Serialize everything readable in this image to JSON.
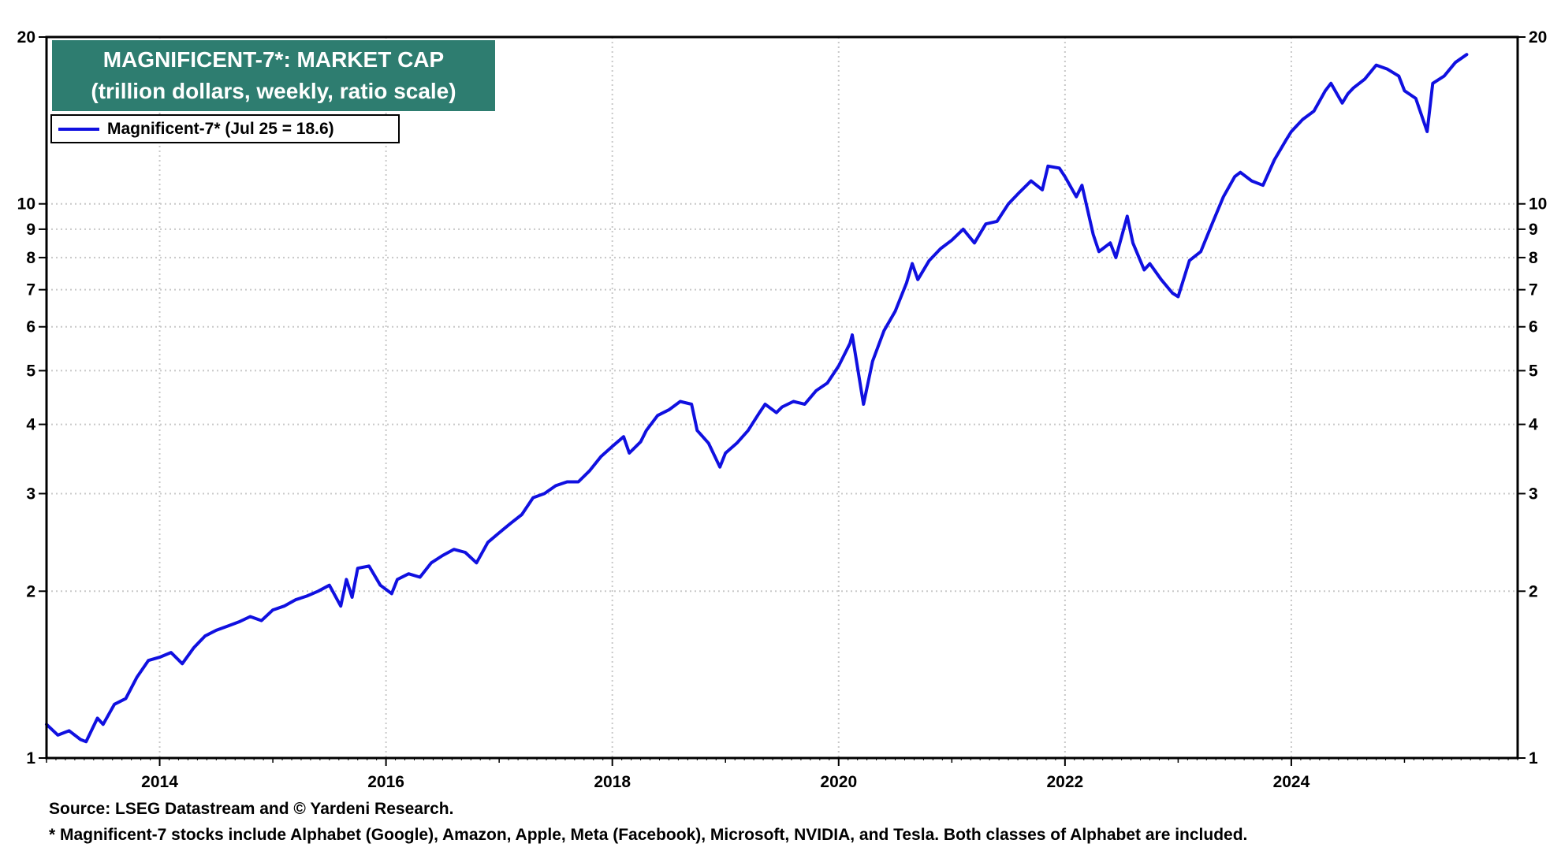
{
  "colors": {
    "series": "#1010e0",
    "title_bg": "#2e7d70",
    "title_text": "#ffffff",
    "grid": "#c8c8c8",
    "frame": "#000000"
  },
  "header": {
    "title_line1": "MAGNIFICENT-7*: MARKET CAP",
    "title_line2": "(trillion dollars, weekly, ratio scale)"
  },
  "legend": {
    "label": "Magnificent-7* (Jul 25 = 18.6)"
  },
  "footer": {
    "source": "Source: LSEG Datastream and © Yardeni Research.",
    "note": "* Magnificent-7 stocks include Alphabet (Google), Amazon, Apple, Meta (Facebook), Microsoft, NVIDIA, and Tesla. Both classes of Alphabet are included."
  },
  "chart_data": {
    "type": "line",
    "title": "MAGNIFICENT-7*: MARKET CAP",
    "subtitle": "(trillion dollars, weekly, ratio scale)",
    "y_scale": "log",
    "ylim": [
      1,
      20
    ],
    "xlim": [
      2013.0,
      2026.0
    ],
    "y_ticks": [
      1,
      2,
      3,
      4,
      5,
      6,
      7,
      8,
      9,
      10,
      20
    ],
    "x_ticks": [
      {
        "value": 2014,
        "label": "2014"
      },
      {
        "value": 2016,
        "label": "2016"
      },
      {
        "value": 2018,
        "label": "2018"
      },
      {
        "value": 2020,
        "label": "2020"
      },
      {
        "value": 2022,
        "label": "2022"
      },
      {
        "value": 2024,
        "label": "2024"
      }
    ],
    "x_minor_ticks": [
      2013,
      2015,
      2017,
      2019,
      2021,
      2023,
      2025
    ],
    "grid": true,
    "legend_position": "top-left",
    "series": [
      {
        "name": "Magnificent-7* (Jul 25 = 18.6)",
        "x": [
          2013.0,
          2013.1,
          2013.2,
          2013.3,
          2013.35,
          2013.45,
          2013.5,
          2013.6,
          2013.7,
          2013.8,
          2013.9,
          2014.0,
          2014.1,
          2014.2,
          2014.3,
          2014.4,
          2014.5,
          2014.6,
          2014.7,
          2014.8,
          2014.9,
          2015.0,
          2015.1,
          2015.2,
          2015.3,
          2015.4,
          2015.5,
          2015.6,
          2015.65,
          2015.7,
          2015.75,
          2015.85,
          2015.95,
          2016.05,
          2016.1,
          2016.2,
          2016.3,
          2016.4,
          2016.5,
          2016.6,
          2016.7,
          2016.8,
          2016.9,
          2017.0,
          2017.1,
          2017.2,
          2017.3,
          2017.4,
          2017.5,
          2017.6,
          2017.7,
          2017.8,
          2017.9,
          2018.0,
          2018.1,
          2018.15,
          2018.25,
          2018.3,
          2018.4,
          2018.5,
          2018.6,
          2018.7,
          2018.75,
          2018.85,
          2018.95,
          2019.0,
          2019.1,
          2019.2,
          2019.3,
          2019.35,
          2019.45,
          2019.5,
          2019.6,
          2019.7,
          2019.8,
          2019.9,
          2020.0,
          2020.1,
          2020.12,
          2020.2,
          2020.22,
          2020.3,
          2020.4,
          2020.5,
          2020.6,
          2020.65,
          2020.7,
          2020.8,
          2020.9,
          2021.0,
          2021.1,
          2021.2,
          2021.3,
          2021.4,
          2021.5,
          2021.6,
          2021.7,
          2021.8,
          2021.85,
          2021.95,
          2022.0,
          2022.1,
          2022.15,
          2022.25,
          2022.3,
          2022.4,
          2022.45,
          2022.55,
          2022.6,
          2022.7,
          2022.75,
          2022.85,
          2022.95,
          2023.0,
          2023.1,
          2023.2,
          2023.3,
          2023.4,
          2023.5,
          2023.55,
          2023.65,
          2023.75,
          2023.85,
          2023.95,
          2024.0,
          2024.1,
          2024.2,
          2024.3,
          2024.35,
          2024.45,
          2024.5,
          2024.55,
          2024.65,
          2024.75,
          2024.85,
          2024.95,
          2025.0,
          2025.1,
          2025.2,
          2025.25,
          2025.35,
          2025.45,
          2025.55
        ],
        "values": [
          1.15,
          1.1,
          1.12,
          1.08,
          1.07,
          1.18,
          1.15,
          1.25,
          1.28,
          1.4,
          1.5,
          1.52,
          1.55,
          1.48,
          1.58,
          1.66,
          1.7,
          1.73,
          1.76,
          1.8,
          1.77,
          1.85,
          1.88,
          1.93,
          1.96,
          2.0,
          2.05,
          1.88,
          2.1,
          1.95,
          2.2,
          2.22,
          2.05,
          1.98,
          2.1,
          2.15,
          2.12,
          2.25,
          2.32,
          2.38,
          2.35,
          2.25,
          2.45,
          2.55,
          2.65,
          2.75,
          2.95,
          3.0,
          3.1,
          3.15,
          3.15,
          3.3,
          3.5,
          3.65,
          3.8,
          3.55,
          3.72,
          3.9,
          4.15,
          4.25,
          4.4,
          4.35,
          3.9,
          3.7,
          3.35,
          3.55,
          3.7,
          3.9,
          4.2,
          4.35,
          4.2,
          4.3,
          4.4,
          4.35,
          4.6,
          4.75,
          5.1,
          5.6,
          5.8,
          4.6,
          4.35,
          5.2,
          5.9,
          6.4,
          7.2,
          7.8,
          7.3,
          7.9,
          8.3,
          8.6,
          9.0,
          8.5,
          9.2,
          9.3,
          10.0,
          10.5,
          11.0,
          10.6,
          11.7,
          11.6,
          11.2,
          10.3,
          10.8,
          8.8,
          8.2,
          8.5,
          8.0,
          9.5,
          8.5,
          7.6,
          7.8,
          7.3,
          6.9,
          6.8,
          7.9,
          8.2,
          9.2,
          10.3,
          11.2,
          11.4,
          11.0,
          10.8,
          12.0,
          13.0,
          13.5,
          14.2,
          14.7,
          16.0,
          16.5,
          15.2,
          15.8,
          16.2,
          16.8,
          17.8,
          17.5,
          17.0,
          16.0,
          15.5,
          13.5,
          16.5,
          17.0,
          18.0,
          18.6
        ]
      }
    ]
  }
}
